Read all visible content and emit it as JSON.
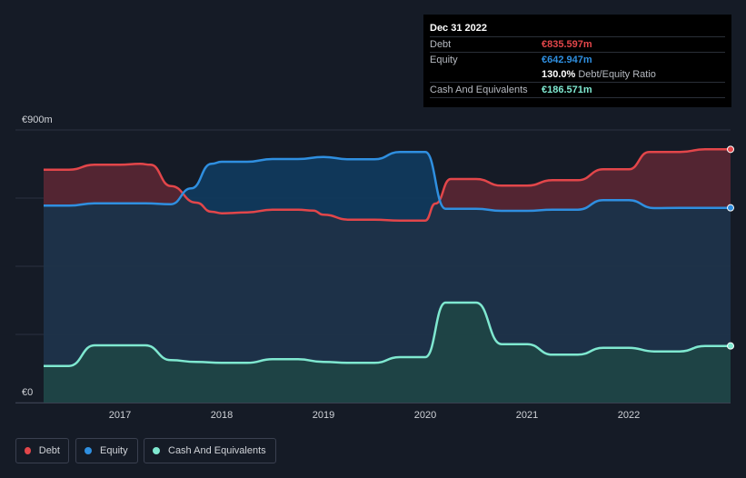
{
  "tooltip": {
    "date": "Dec 31 2022",
    "debt_label": "Debt",
    "debt_value": "€835.597m",
    "equity_label": "Equity",
    "equity_value": "€642.947m",
    "ratio_value": "130.0%",
    "ratio_label": "Debt/Equity Ratio",
    "cash_label": "Cash And Equivalents",
    "cash_value": "€186.571m"
  },
  "legend": {
    "debt": "Debt",
    "equity": "Equity",
    "cash": "Cash And Equivalents"
  },
  "colors": {
    "debt": "#e2464a",
    "equity": "#2f8fe0",
    "cash": "#7fe8d0",
    "background": "#151b26"
  },
  "chart_data": {
    "type": "area",
    "y_axis": {
      "min": 0,
      "max": 900,
      "top_label": "€900m",
      "bottom_label": "€0"
    },
    "x_axis": {
      "min": 2016.25,
      "max": 2023.0,
      "ticks": [
        "2017",
        "2018",
        "2019",
        "2020",
        "2021",
        "2022"
      ]
    },
    "grid": true,
    "series": [
      {
        "name": "Debt",
        "points": [
          [
            2016.25,
            769
          ],
          [
            2016.5,
            769
          ],
          [
            2016.75,
            785
          ],
          [
            2016.9,
            785
          ],
          [
            2017.0,
            785
          ],
          [
            2017.2,
            788
          ],
          [
            2017.3,
            785
          ],
          [
            2017.5,
            715
          ],
          [
            2017.75,
            660
          ],
          [
            2017.9,
            630
          ],
          [
            2018.0,
            625
          ],
          [
            2018.25,
            628
          ],
          [
            2018.5,
            637
          ],
          [
            2018.75,
            637
          ],
          [
            2018.9,
            634
          ],
          [
            2019.0,
            620
          ],
          [
            2019.25,
            604
          ],
          [
            2019.5,
            604
          ],
          [
            2019.75,
            601
          ],
          [
            2020.0,
            601
          ],
          [
            2020.1,
            657
          ],
          [
            2020.25,
            738
          ],
          [
            2020.5,
            738
          ],
          [
            2020.75,
            716
          ],
          [
            2021.0,
            716
          ],
          [
            2021.25,
            734
          ],
          [
            2021.5,
            734
          ],
          [
            2021.75,
            770
          ],
          [
            2022.0,
            770
          ],
          [
            2022.2,
            827
          ],
          [
            2022.5,
            827
          ],
          [
            2022.75,
            836
          ],
          [
            2023.0,
            836
          ]
        ]
      },
      {
        "name": "Equity",
        "points": [
          [
            2016.25,
            650
          ],
          [
            2016.5,
            650
          ],
          [
            2016.75,
            658
          ],
          [
            2017.0,
            658
          ],
          [
            2017.25,
            658
          ],
          [
            2017.5,
            655
          ],
          [
            2017.7,
            707
          ],
          [
            2017.9,
            788
          ],
          [
            2018.0,
            795
          ],
          [
            2018.25,
            795
          ],
          [
            2018.5,
            804
          ],
          [
            2018.75,
            804
          ],
          [
            2019.0,
            811
          ],
          [
            2019.25,
            803
          ],
          [
            2019.5,
            803
          ],
          [
            2019.75,
            827
          ],
          [
            2020.0,
            827
          ],
          [
            2020.2,
            640
          ],
          [
            2020.5,
            640
          ],
          [
            2020.75,
            633
          ],
          [
            2021.0,
            633
          ],
          [
            2021.25,
            637
          ],
          [
            2021.5,
            637
          ],
          [
            2021.75,
            668
          ],
          [
            2022.0,
            668
          ],
          [
            2022.25,
            642
          ],
          [
            2022.5,
            643
          ],
          [
            2022.75,
            643
          ],
          [
            2023.0,
            643
          ]
        ]
      },
      {
        "name": "Cash And Equivalents",
        "points": [
          [
            2016.25,
            121
          ],
          [
            2016.5,
            121
          ],
          [
            2016.75,
            189
          ],
          [
            2017.0,
            189
          ],
          [
            2017.25,
            189
          ],
          [
            2017.5,
            140
          ],
          [
            2017.75,
            134
          ],
          [
            2018.0,
            131
          ],
          [
            2018.25,
            131
          ],
          [
            2018.5,
            143
          ],
          [
            2018.75,
            143
          ],
          [
            2019.0,
            134
          ],
          [
            2019.25,
            131
          ],
          [
            2019.5,
            131
          ],
          [
            2019.75,
            150
          ],
          [
            2020.0,
            150
          ],
          [
            2020.2,
            330
          ],
          [
            2020.5,
            330
          ],
          [
            2020.75,
            193
          ],
          [
            2021.0,
            193
          ],
          [
            2021.25,
            158
          ],
          [
            2021.5,
            158
          ],
          [
            2021.75,
            181
          ],
          [
            2022.0,
            181
          ],
          [
            2022.25,
            169
          ],
          [
            2022.5,
            169
          ],
          [
            2022.75,
            187
          ],
          [
            2023.0,
            187
          ]
        ]
      }
    ]
  }
}
